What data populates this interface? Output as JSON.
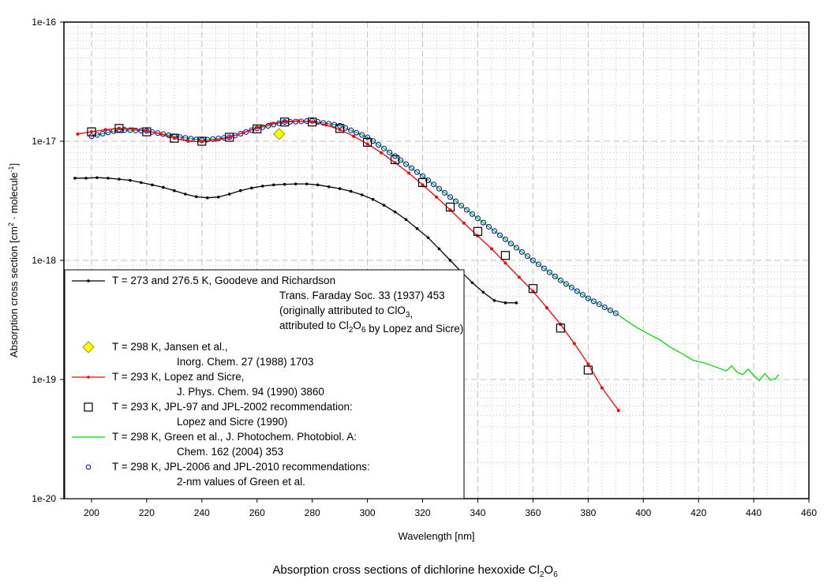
{
  "chart_data": {
    "type": "line",
    "title": "Absorption cross sections of dichlorine hexoxide Cl2O6",
    "title_parts": {
      "main": "Absorption cross sections of dichlorine hexoxide Cl",
      "sub1": "2",
      "mid": "O",
      "sub2": "6"
    },
    "xlabel": "Wavelength [nm]",
    "ylabel": "Absorption cross section [cm2 · molecule-1]",
    "ylabel_parts": {
      "main": "Absorption cross section [cm",
      "sup1": "2",
      "mid": " · molecule",
      "sup2": "-1",
      "end": "]"
    },
    "xlim": [
      190,
      460
    ],
    "ylim": [
      1e-20,
      1e-16
    ],
    "yscale": "log",
    "grid": true,
    "legend_position": "lower-left",
    "x_ticks": [
      "200",
      "220",
      "240",
      "260",
      "280",
      "300",
      "320",
      "340",
      "360",
      "380",
      "400",
      "420",
      "440",
      "460"
    ],
    "x_tick_values": [
      200,
      220,
      240,
      260,
      280,
      300,
      320,
      340,
      360,
      380,
      400,
      420,
      440,
      460
    ],
    "y_ticks": [
      "1e-20",
      "1e-19",
      "1e-18",
      "1e-17",
      "1e-16"
    ],
    "y_tick_values": [
      1e-20,
      1e-19,
      1e-18,
      1e-17,
      1e-16
    ],
    "series": [
      {
        "name": "goodeve",
        "label_lines": [
          "T = 273 and 276.5 K, Goodeve and Richardson",
          "Trans. Faraday Soc. 33 (1937) 453",
          "(originally attributed to ClO3,",
          "attributed to Cl2O6 by Lopez and Sicre)"
        ],
        "color": "#000000",
        "marker": "small-dot",
        "style": "line",
        "x": [
          194,
          198,
          202,
          206,
          210,
          214,
          218,
          222,
          226,
          230,
          234,
          238,
          242,
          246,
          250,
          254,
          258,
          262,
          266,
          270,
          274,
          278,
          282,
          286,
          290,
          294,
          298,
          302,
          306,
          310,
          314,
          318,
          322,
          326,
          330,
          334,
          338,
          342,
          346,
          350,
          354
        ],
        "y": [
          4.9e-18,
          4.9e-18,
          4.95e-18,
          4.9e-18,
          4.8e-18,
          4.7e-18,
          4.5e-18,
          4.3e-18,
          4.1e-18,
          3.85e-18,
          3.6e-18,
          3.42e-18,
          3.35e-18,
          3.4e-18,
          3.6e-18,
          3.85e-18,
          4.05e-18,
          4.2e-18,
          4.3e-18,
          4.35e-18,
          4.38e-18,
          4.38e-18,
          4.3e-18,
          4.15e-18,
          4e-18,
          3.8e-18,
          3.55e-18,
          3.25e-18,
          2.9e-18,
          2.55e-18,
          2.2e-18,
          1.85e-18,
          1.55e-18,
          1.25e-18,
          1e-18,
          8e-19,
          6.5e-19,
          5.4e-19,
          4.6e-19,
          4.4e-19,
          4.4e-19
        ]
      },
      {
        "name": "jansen",
        "label_lines": [
          "T = 298 K, Jansen et al.,",
          "Inorg. Chem. 27 (1988) 1703"
        ],
        "color": "#ffff00",
        "marker": "diamond",
        "style": "marker",
        "x": [
          268
        ],
        "y": [
          1.15e-17
        ]
      },
      {
        "name": "lopez",
        "label_lines": [
          "T = 293 K, Lopez and Sicre,",
          "J. Phys. Chem. 94 (1990) 3860"
        ],
        "color": "#ff0000",
        "marker": "small-dot",
        "style": "line",
        "x": [
          195,
          200,
          205,
          210,
          215,
          220,
          225,
          230,
          235,
          240,
          245,
          250,
          255,
          260,
          265,
          270,
          275,
          280,
          285,
          290,
          295,
          300,
          305,
          310,
          315,
          320,
          325,
          330,
          335,
          340,
          345,
          350,
          355,
          360,
          365,
          370,
          375,
          380,
          385,
          391
        ],
        "y": [
          1.15e-17,
          1.2e-17,
          1.25e-17,
          1.28e-17,
          1.27e-17,
          1.22e-17,
          1.15e-17,
          1.06e-17,
          1e-17,
          9.9e-18,
          1.02e-17,
          1.08e-17,
          1.18e-17,
          1.3e-17,
          1.4e-17,
          1.46e-17,
          1.48e-17,
          1.45e-17,
          1.37e-17,
          1.25e-17,
          1.1e-17,
          9.5e-18,
          8e-18,
          6.6e-18,
          5.4e-18,
          4.3e-18,
          3.4e-18,
          2.65e-18,
          2.05e-18,
          1.6e-18,
          1.25e-18,
          9.5e-19,
          7.2e-19,
          5.5e-19,
          4e-19,
          2.9e-19,
          2e-19,
          1.35e-19,
          8.5e-20,
          5.5e-20
        ]
      },
      {
        "name": "jpl97",
        "label_lines": [
          "T = 293 K, JPL-97 and JPL-2002 recommendation:",
          "Lopez and Sicre (1990)"
        ],
        "color": "#000000",
        "marker": "open-square",
        "style": "marker",
        "x": [
          200,
          210,
          220,
          230,
          240,
          250,
          260,
          270,
          280,
          290,
          300,
          310,
          320,
          330,
          340,
          350,
          360,
          370,
          380
        ],
        "y": [
          1.2e-17,
          1.28e-17,
          1.2e-17,
          1.06e-17,
          1e-17,
          1.08e-17,
          1.27e-17,
          1.45e-17,
          1.45e-17,
          1.28e-17,
          9.8e-18,
          7e-18,
          4.5e-18,
          2.8e-18,
          1.75e-18,
          1.1e-18,
          5.8e-19,
          2.7e-19,
          1.2e-19
        ]
      },
      {
        "name": "green",
        "label_lines": [
          "T = 298 K, Green et al., J. Photochem. Photobiol. A:",
          "Chem. 162 (2004) 353"
        ],
        "color": "#00dd00",
        "marker": "none",
        "style": "line",
        "x": [
          200,
          210,
          220,
          230,
          240,
          250,
          260,
          270,
          280,
          290,
          300,
          310,
          320,
          330,
          340,
          350,
          360,
          370,
          380,
          390,
          394,
          398,
          402,
          406,
          410,
          414,
          418,
          422,
          426,
          430,
          432,
          434,
          436,
          438,
          440,
          442,
          444,
          446,
          448,
          449
        ],
        "y": [
          1.1e-17,
          1.25e-17,
          1.22e-17,
          1.1e-17,
          1.02e-17,
          1.08e-17,
          1.28e-17,
          1.45e-17,
          1.48e-17,
          1.35e-17,
          1.08e-17,
          7.5e-18,
          5.1e-18,
          3.4e-18,
          2.25e-18,
          1.5e-18,
          1e-18,
          6.8e-19,
          4.8e-19,
          3.6e-19,
          3.1e-19,
          2.7e-19,
          2.4e-19,
          2.15e-19,
          1.85e-19,
          1.65e-19,
          1.45e-19,
          1.38e-19,
          1.28e-19,
          1.18e-19,
          1.3e-19,
          1.15e-19,
          1.1e-19,
          1.22e-19,
          1.08e-19,
          9.8e-20,
          1.12e-19,
          9.9e-20,
          1.02e-19,
          1.1e-19
        ]
      },
      {
        "name": "jpl2006",
        "label_lines": [
          "T = 298 K, JPL-2006 and JPL-2010 recommendations:",
          "2-nm values of Green et al."
        ],
        "color": "#0000cc",
        "marker": "open-circle",
        "style": "marker",
        "x_start": 200,
        "x_step": 2,
        "x_end": 390
      }
    ]
  }
}
